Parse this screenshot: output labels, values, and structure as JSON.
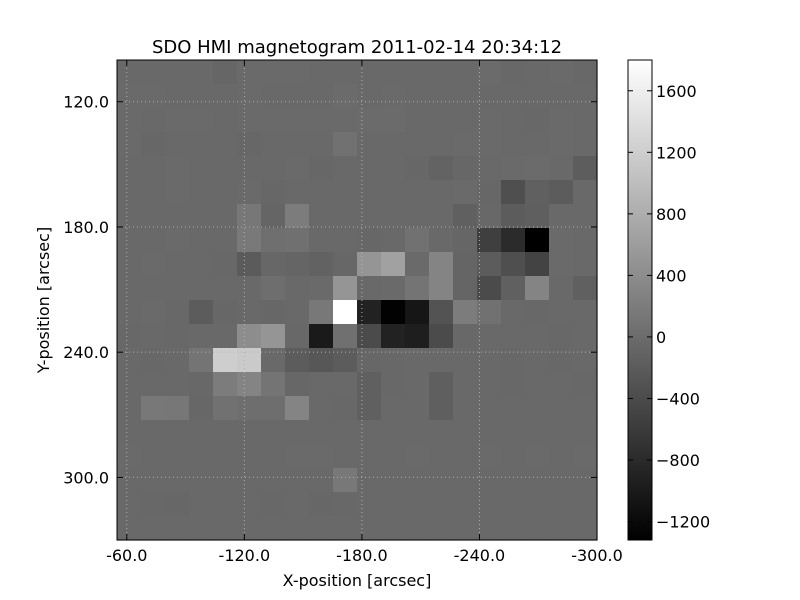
{
  "chart_data": {
    "type": "heatmap",
    "title": "SDO HMI magnetogram 2011-02-14 20:34:12",
    "xlabel": "X-position [arcsec]",
    "ylabel": "Y-position [arcsec]",
    "x_ticks": [
      "-60.0",
      "-120.0",
      "-180.0",
      "-240.0",
      "-300.0"
    ],
    "y_ticks": [
      "120.0",
      "180.0",
      "240.0",
      "300.0"
    ],
    "xlim": [
      -55,
      -300
    ],
    "ylim": [
      330,
      100
    ],
    "grid": true,
    "colormap": "grayscale",
    "colorbar": {
      "range": [
        -1320,
        1800
      ],
      "ticks": [
        "1600",
        "1200",
        "800",
        "400",
        "0",
        "−400",
        "−800",
        "−1200"
      ],
      "tick_values": [
        1600,
        1200,
        800,
        400,
        0,
        -400,
        -800,
        -1200
      ]
    },
    "grid_size": [
      20,
      20
    ],
    "values": [
      [
        -30,
        -40,
        -30,
        -30,
        -70,
        -20,
        -20,
        -20,
        -40,
        -30,
        -30,
        -30,
        -40,
        -40,
        -30,
        -10,
        -50,
        -40,
        -20,
        -50
      ],
      [
        -20,
        -20,
        -30,
        -30,
        -30,
        -20,
        -30,
        -30,
        -30,
        -10,
        -30,
        -20,
        -40,
        -30,
        -30,
        -40,
        -30,
        -40,
        -30,
        -30
      ],
      [
        -20,
        -30,
        -20,
        -20,
        -30,
        -20,
        -20,
        -20,
        -20,
        -20,
        -10,
        -10,
        -30,
        -30,
        -30,
        -20,
        -30,
        -50,
        -20,
        -40
      ],
      [
        -20,
        -60,
        -40,
        -40,
        -30,
        -60,
        -40,
        -30,
        -30,
        60,
        -40,
        -30,
        -30,
        -30,
        -20,
        -20,
        -40,
        -30,
        -20,
        -40
      ],
      [
        -30,
        -40,
        -20,
        -40,
        -40,
        -30,
        -40,
        -20,
        -60,
        -30,
        -40,
        -30,
        -60,
        -110,
        -60,
        -30,
        -20,
        -10,
        -30,
        -180
      ],
      [
        -30,
        -30,
        -20,
        -30,
        -30,
        -20,
        -60,
        -40,
        -40,
        -30,
        -30,
        -30,
        -30,
        -30,
        -20,
        -60,
        -350,
        -150,
        -200,
        -40
      ],
      [
        -30,
        -40,
        -40,
        -30,
        -40,
        140,
        -90,
        200,
        -30,
        -30,
        -30,
        -30,
        -40,
        -40,
        -150,
        -50,
        -200,
        -160,
        -30,
        -40
      ],
      [
        -30,
        -30,
        -20,
        -30,
        -30,
        160,
        40,
        50,
        -40,
        -30,
        -60,
        -30,
        60,
        -40,
        -70,
        -550,
        -800,
        -1320,
        -20,
        -30
      ],
      [
        -40,
        -20,
        -40,
        -30,
        -50,
        -210,
        -60,
        -80,
        -120,
        -60,
        500,
        650,
        -20,
        300,
        -80,
        -200,
        -350,
        -500,
        -20,
        -30
      ],
      [
        -40,
        -30,
        -30,
        -40,
        -30,
        -40,
        30,
        -30,
        -20,
        500,
        -30,
        -20,
        100,
        300,
        -90,
        -400,
        -150,
        300,
        -30,
        -140
      ],
      [
        -40,
        -20,
        -50,
        -200,
        -60,
        -30,
        -60,
        -40,
        150,
        1800,
        -900,
        -1300,
        -1050,
        -300,
        200,
        60,
        -40,
        -50,
        -40,
        -40
      ],
      [
        -50,
        -40,
        -50,
        -30,
        -40,
        400,
        500,
        -50,
        -1000,
        50,
        -400,
        -900,
        -950,
        -400,
        -50,
        -30,
        -30,
        -30,
        -50,
        -40
      ],
      [
        -30,
        -50,
        -40,
        100,
        1200,
        1150,
        -30,
        -200,
        -250,
        -190,
        -60,
        -50,
        -40,
        -40,
        -40,
        -30,
        -50,
        -40,
        -50,
        -40
      ],
      [
        -30,
        -30,
        -30,
        -50,
        200,
        300,
        100,
        -60,
        -30,
        -40,
        -140,
        -50,
        -30,
        -160,
        -30,
        -40,
        -50,
        -30,
        -40,
        -50
      ],
      [
        -30,
        150,
        130,
        -60,
        60,
        30,
        20,
        300,
        -40,
        -50,
        -140,
        -40,
        -40,
        -160,
        -40,
        -30,
        -40,
        -30,
        -40,
        -30
      ],
      [
        -40,
        -40,
        -30,
        -40,
        -30,
        -40,
        -40,
        -30,
        -30,
        -30,
        -30,
        -30,
        -40,
        -30,
        -40,
        -30,
        -30,
        -30,
        -30,
        -30
      ],
      [
        -20,
        -30,
        -30,
        -30,
        -30,
        -40,
        -30,
        -20,
        -20,
        -30,
        -30,
        -30,
        -20,
        -30,
        -30,
        -20,
        -30,
        -20,
        -30,
        -20
      ],
      [
        -30,
        -40,
        -30,
        -30,
        -40,
        -30,
        -30,
        -40,
        -40,
        150,
        -30,
        -30,
        -30,
        -30,
        -30,
        -40,
        -30,
        -30,
        -30,
        -40
      ],
      [
        -40,
        -50,
        -60,
        -40,
        -30,
        -30,
        -50,
        -40,
        -60,
        -50,
        -40,
        -40,
        -30,
        -40,
        -40,
        -30,
        -30,
        -40,
        -30,
        -30
      ],
      [
        -30,
        -40,
        -30,
        -30,
        -40,
        -30,
        -30,
        -40,
        -30,
        -30,
        -30,
        -40,
        -30,
        -30,
        -40,
        -30,
        -30,
        -30,
        -30,
        -30
      ]
    ]
  }
}
